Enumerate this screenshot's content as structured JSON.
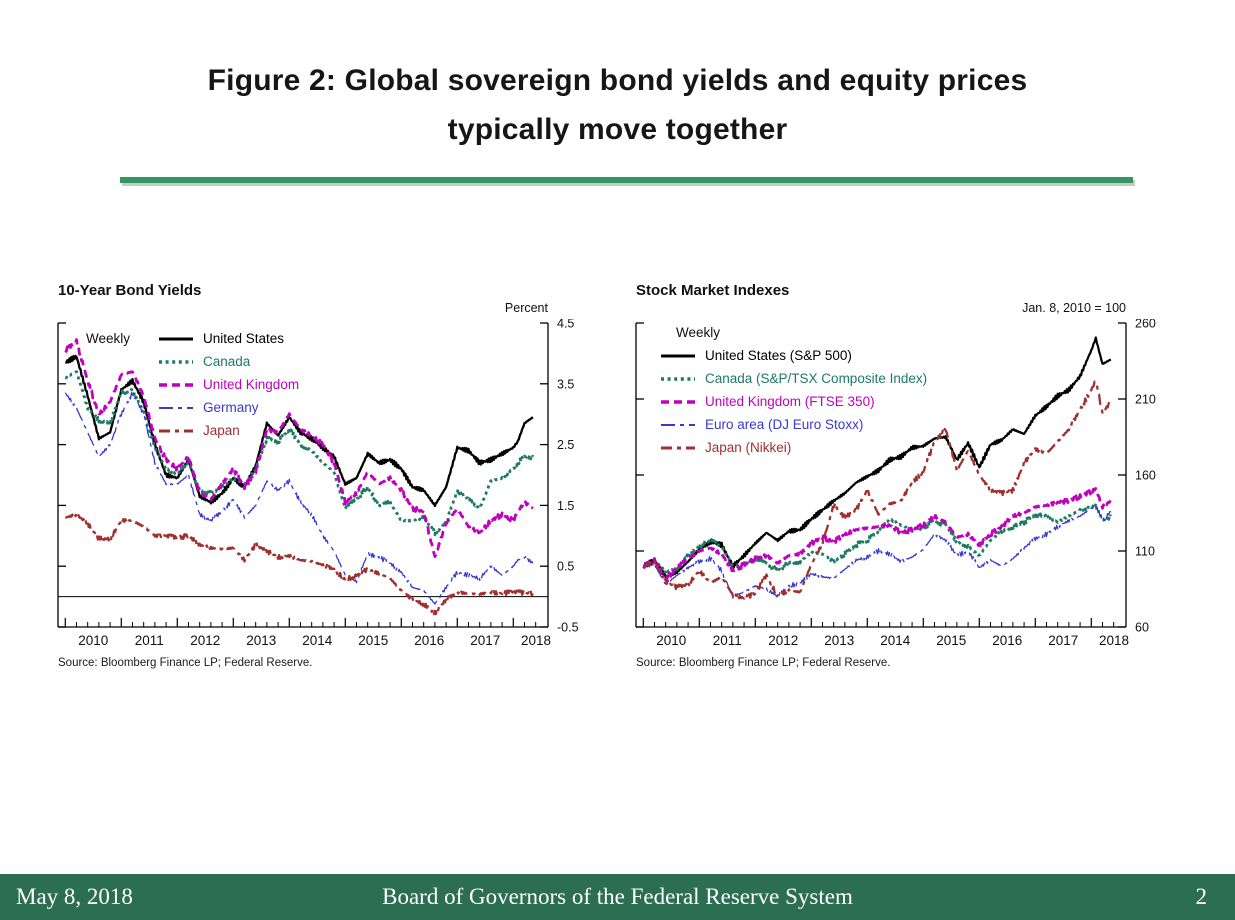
{
  "slide": {
    "title": {
      "line1": "Figure 2: Global sovereign bond yields and equity prices",
      "line2": "typically move together"
    },
    "footer": {
      "date": "May 8, 2018",
      "org": "Board of Governors of the Federal Reserve System",
      "page": "2"
    }
  },
  "colors": {
    "divider_green": "#369661",
    "footer_green": "#2c6e51",
    "title_text": "#161616"
  },
  "chart_data": [
    {
      "type": "line",
      "title": "10-Year Bond Yields",
      "unit_label": "Percent",
      "freq_label": "Weekly",
      "source": "Source: Bloomberg Finance LP; Federal Reserve.",
      "legend_layout": "row",
      "legend_position": "top-left-inside",
      "grid": false,
      "zero_line": true,
      "xlim": [
        2009.87,
        2018.62
      ],
      "ylim": [
        -0.5,
        4.5
      ],
      "yticks": [
        4.5,
        3.5,
        2.5,
        1.5,
        0.5,
        -0.5
      ],
      "ytick_labels": [
        "4.5",
        "3.5",
        "2.5",
        "1.5",
        "0.5",
        "-0.5"
      ],
      "x_years": [
        "2010",
        "2011",
        "2012",
        "2013",
        "2014",
        "2015",
        "2016",
        "2017",
        "2018"
      ],
      "x": [
        2010.0,
        2010.2,
        2010.4,
        2010.6,
        2010.8,
        2011.0,
        2011.2,
        2011.4,
        2011.6,
        2011.8,
        2012.0,
        2012.2,
        2012.4,
        2012.6,
        2012.8,
        2013.0,
        2013.2,
        2013.4,
        2013.6,
        2013.8,
        2014.0,
        2014.2,
        2014.4,
        2014.6,
        2014.8,
        2015.0,
        2015.2,
        2015.4,
        2015.6,
        2015.8,
        2016.0,
        2016.2,
        2016.4,
        2016.6,
        2016.8,
        2017.0,
        2017.2,
        2017.4,
        2017.6,
        2017.8,
        2018.0,
        2018.08,
        2018.2,
        2018.35
      ],
      "series": [
        {
          "name": "United States",
          "color": "#000000",
          "dash": "",
          "width": 2.3,
          "values": [
            3.85,
            3.95,
            3.3,
            2.6,
            2.7,
            3.4,
            3.55,
            3.2,
            2.5,
            2.0,
            1.95,
            2.25,
            1.65,
            1.55,
            1.7,
            1.95,
            1.8,
            2.15,
            2.85,
            2.65,
            2.95,
            2.7,
            2.6,
            2.45,
            2.3,
            1.85,
            1.95,
            2.35,
            2.2,
            2.25,
            2.1,
            1.8,
            1.75,
            1.5,
            1.8,
            2.45,
            2.4,
            2.2,
            2.25,
            2.35,
            2.45,
            2.55,
            2.85,
            2.95
          ]
        },
        {
          "name": "Canada",
          "color": "#1e7a64",
          "dash": "3 3.6",
          "width": 2.8,
          "values": [
            3.6,
            3.7,
            3.1,
            2.9,
            2.85,
            3.35,
            3.4,
            3.05,
            2.45,
            2.1,
            2.0,
            2.2,
            1.75,
            1.7,
            1.8,
            1.95,
            1.85,
            2.1,
            2.6,
            2.55,
            2.75,
            2.5,
            2.4,
            2.2,
            2.05,
            1.45,
            1.6,
            1.8,
            1.5,
            1.55,
            1.25,
            1.25,
            1.3,
            1.05,
            1.2,
            1.75,
            1.6,
            1.45,
            1.9,
            1.95,
            2.1,
            2.2,
            2.3,
            2.3
          ]
        },
        {
          "name": "United Kingdom",
          "color": "#bf00bf",
          "dash": "8 5",
          "width": 2.8,
          "values": [
            4.05,
            4.2,
            3.55,
            3.0,
            3.2,
            3.65,
            3.7,
            3.3,
            2.6,
            2.25,
            2.1,
            2.3,
            1.7,
            1.6,
            1.85,
            2.1,
            1.8,
            2.05,
            2.75,
            2.7,
            3.0,
            2.75,
            2.65,
            2.5,
            2.2,
            1.55,
            1.7,
            2.05,
            1.85,
            1.95,
            1.75,
            1.45,
            1.4,
            0.65,
            1.2,
            1.45,
            1.15,
            1.05,
            1.25,
            1.35,
            1.25,
            1.4,
            1.55,
            1.45
          ]
        },
        {
          "name": "Germany",
          "color": "#3838d2",
          "dash": "14 5 4 5",
          "width": 1.3,
          "values": [
            3.35,
            3.1,
            2.7,
            2.3,
            2.5,
            3.0,
            3.35,
            3.0,
            2.2,
            1.85,
            1.85,
            2.0,
            1.35,
            1.25,
            1.4,
            1.6,
            1.3,
            1.5,
            1.9,
            1.75,
            1.9,
            1.55,
            1.35,
            1.0,
            0.75,
            0.35,
            0.25,
            0.7,
            0.65,
            0.55,
            0.4,
            0.15,
            0.1,
            -0.12,
            0.15,
            0.4,
            0.35,
            0.3,
            0.5,
            0.35,
            0.5,
            0.6,
            0.65,
            0.55
          ]
        },
        {
          "name": "Japan",
          "color": "#a02f2f",
          "dash": "11 5 4 5",
          "width": 2.3,
          "values": [
            1.3,
            1.35,
            1.2,
            0.95,
            0.95,
            1.25,
            1.25,
            1.15,
            1.0,
            1.0,
            0.97,
            1.0,
            0.85,
            0.8,
            0.78,
            0.8,
            0.6,
            0.85,
            0.75,
            0.65,
            0.67,
            0.6,
            0.58,
            0.52,
            0.45,
            0.28,
            0.35,
            0.45,
            0.38,
            0.3,
            0.1,
            -0.05,
            -0.12,
            -0.27,
            -0.05,
            0.07,
            0.05,
            0.04,
            0.07,
            0.05,
            0.08,
            0.07,
            0.06,
            0.05
          ]
        }
      ]
    },
    {
      "type": "line",
      "title": "Stock Market Indexes",
      "unit_label": "Jan. 8,  2010 = 100",
      "freq_label": "Weekly",
      "source": "Source: Bloomberg Finance LP; Federal Reserve.",
      "legend_layout": "col",
      "legend_position": "top-left-inside",
      "grid": false,
      "zero_line": false,
      "xlim": [
        2009.87,
        2018.62
      ],
      "ylim": [
        60,
        260
      ],
      "yticks": [
        260,
        210,
        160,
        110,
        60
      ],
      "ytick_labels": [
        "260",
        "210",
        "160",
        "110",
        "60"
      ],
      "x_years": [
        "2010",
        "2011",
        "2012",
        "2013",
        "2014",
        "2015",
        "2016",
        "2017",
        "2018"
      ],
      "x": [
        2010.0,
        2010.2,
        2010.4,
        2010.6,
        2010.8,
        2011.0,
        2011.2,
        2011.4,
        2011.6,
        2011.8,
        2012.0,
        2012.2,
        2012.4,
        2012.6,
        2012.8,
        2013.0,
        2013.2,
        2013.4,
        2013.6,
        2013.8,
        2014.0,
        2014.2,
        2014.4,
        2014.6,
        2014.8,
        2015.0,
        2015.2,
        2015.4,
        2015.6,
        2015.8,
        2016.0,
        2016.2,
        2016.4,
        2016.6,
        2016.8,
        2017.0,
        2017.2,
        2017.4,
        2017.6,
        2017.8,
        2018.0,
        2018.08,
        2018.2,
        2018.35
      ],
      "series": [
        {
          "name": "United States (S&P 500)",
          "color": "#000000",
          "dash": "",
          "width": 2.2,
          "values": [
            100,
            104,
            93,
            96,
            103,
            111,
            116,
            114,
            100,
            107,
            115,
            122,
            117,
            123,
            124,
            131,
            137,
            143,
            148,
            155,
            159,
            163,
            170,
            172,
            178,
            179,
            184,
            185,
            170,
            181,
            165,
            180,
            183,
            190,
            187,
            199,
            205,
            212,
            216,
            225,
            242,
            250,
            233,
            236
          ]
        },
        {
          "name": "Canada (S&P/TSX Composite Index)",
          "color": "#1e7a64",
          "dash": "3 3.6",
          "width": 2.8,
          "values": [
            100,
            104,
            96,
            99,
            107,
            113,
            117,
            113,
            100,
            102,
            104,
            102,
            97,
            102,
            103,
            109,
            108,
            103,
            108,
            114,
            117,
            123,
            131,
            127,
            124,
            125,
            130,
            127,
            116,
            113,
            107,
            117,
            123,
            126,
            129,
            134,
            133,
            129,
            133,
            137,
            139,
            140,
            130,
            133
          ]
        },
        {
          "name": "United Kingdom (FTSE 350)",
          "color": "#bf00bf",
          "dash": "8 5",
          "width": 2.8,
          "values": [
            100,
            104,
            91,
            99,
            105,
            110,
            112,
            108,
            97,
            101,
            105,
            107,
            102,
            107,
            108,
            115,
            119,
            116,
            121,
            124,
            125,
            126,
            127,
            122,
            124,
            127,
            133,
            129,
            119,
            121,
            114,
            121,
            126,
            133,
            135,
            139,
            140,
            142,
            143,
            146,
            149,
            151,
            139,
            143
          ]
        },
        {
          "name": "Euro area (DJ Euro Stoxx)",
          "color": "#3838d2",
          "dash": "14 5 4 5",
          "width": 1.3,
          "values": [
            100,
            101,
            88,
            94,
            99,
            103,
            105,
            97,
            80,
            83,
            87,
            85,
            80,
            87,
            89,
            95,
            93,
            92,
            98,
            104,
            106,
            110,
            108,
            103,
            106,
            111,
            121,
            117,
            107,
            110,
            99,
            104,
            100,
            105,
            112,
            118,
            121,
            126,
            130,
            133,
            138,
            140,
            130,
            136
          ]
        },
        {
          "name": "Japan (Nikkei)",
          "color": "#a02f2f",
          "dash": "11 5 4 5",
          "width": 2.3,
          "values": [
            100,
            103,
            90,
            86,
            88,
            97,
            89,
            93,
            81,
            79,
            82,
            94,
            80,
            84,
            83,
            101,
            115,
            140,
            132,
            137,
            150,
            134,
            141,
            143,
            155,
            162,
            182,
            190,
            163,
            176,
            160,
            150,
            148,
            150,
            168,
            177,
            174,
            182,
            190,
            203,
            216,
            222,
            201,
            208
          ]
        }
      ]
    }
  ]
}
